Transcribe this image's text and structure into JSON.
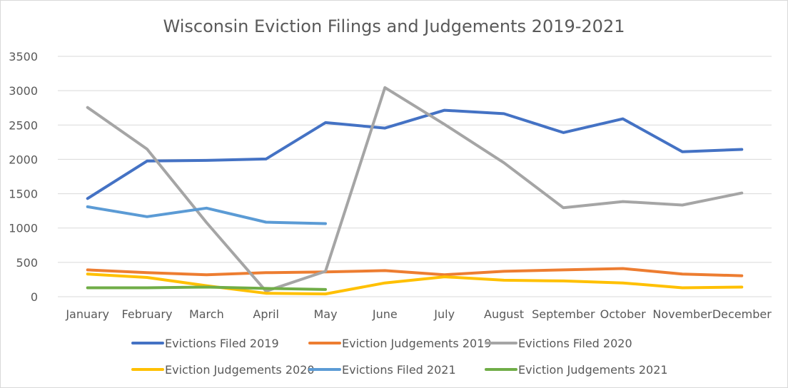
{
  "chart_data": {
    "type": "line",
    "title": "Wisconsin Eviction Filings and Judgements 2019-2021",
    "xlabel": "",
    "ylabel": "",
    "categories": [
      "January",
      "February",
      "March",
      "April",
      "May",
      "June",
      "July",
      "August",
      "September",
      "October",
      "November",
      "December"
    ],
    "ylim": [
      0,
      3500
    ],
    "yticks": [
      0,
      500,
      1000,
      1500,
      2000,
      2500,
      3000,
      3500
    ],
    "grid": true,
    "legend": "bottom",
    "series": [
      {
        "name": "Evictions Filed 2019",
        "color": "#4472c4",
        "values": [
          1430,
          1975,
          1985,
          2005,
          2535,
          2455,
          2715,
          2665,
          2390,
          2590,
          2110,
          2145
        ]
      },
      {
        "name": "Eviction Judgements 2019",
        "color": "#ed7d31",
        "values": [
          390,
          350,
          320,
          350,
          360,
          380,
          320,
          370,
          390,
          410,
          330,
          305
        ]
      },
      {
        "name": "Evictions Filed 2020",
        "color": "#a5a5a5",
        "values": [
          2755,
          2150,
          1080,
          80,
          370,
          3045,
          2510,
          1950,
          1295,
          1385,
          1335,
          1510
        ]
      },
      {
        "name": "Eviction Judgements 2020",
        "color": "#ffc000",
        "values": [
          330,
          280,
          160,
          50,
          40,
          200,
          290,
          240,
          230,
          200,
          130,
          140
        ]
      },
      {
        "name": "Evictions Filed 2021",
        "color": "#5b9bd5",
        "values": [
          1310,
          1165,
          1290,
          1085,
          1065,
          null,
          null,
          null,
          null,
          null,
          null,
          null
        ]
      },
      {
        "name": "Eviction Judgements 2021",
        "color": "#70ad47",
        "values": [
          130,
          130,
          140,
          120,
          105,
          null,
          null,
          null,
          null,
          null,
          null,
          null
        ]
      }
    ]
  }
}
